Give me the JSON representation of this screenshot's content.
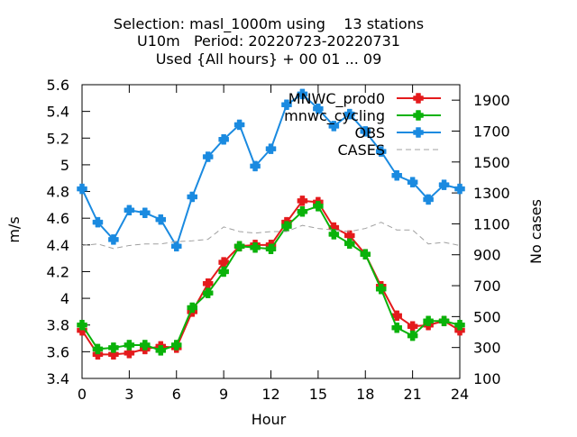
{
  "chart_data": {
    "type": "line",
    "title_lines": [
      "Selection: masl_1000m using    13 stations",
      "U10m   Period: 20220723-20220731",
      "Used {All hours} + 00 01 ... 09"
    ],
    "xlabel": "Hour",
    "ylabel": "m/s",
    "y2label": "No cases",
    "xlim": [
      0,
      24
    ],
    "ylim": [
      3.4,
      5.6
    ],
    "y2lim": [
      100,
      2000
    ],
    "x_ticks": [
      0,
      3,
      6,
      9,
      12,
      15,
      18,
      21,
      24
    ],
    "y_ticks": [
      "3.4",
      "3.6",
      "3.8",
      "4",
      "4.2",
      "4.4",
      "4.6",
      "4.8",
      "5",
      "5.2",
      "5.4",
      "5.6"
    ],
    "y2_ticks": [
      100,
      300,
      500,
      700,
      900,
      1100,
      1300,
      1500,
      1700,
      1900
    ],
    "legend_position": "top-right",
    "grid": false,
    "x": [
      0,
      1,
      2,
      3,
      4,
      5,
      6,
      7,
      8,
      9,
      10,
      11,
      12,
      13,
      14,
      15,
      16,
      17,
      18,
      19,
      20,
      21,
      22,
      23,
      24
    ],
    "series": [
      {
        "name": "MNWC_prod0",
        "color": "#e41a1c",
        "axis": "left",
        "style": "line-marker",
        "values": [
          3.76,
          3.58,
          3.58,
          3.59,
          3.62,
          3.64,
          3.63,
          3.9,
          4.11,
          4.27,
          4.39,
          4.4,
          4.4,
          4.57,
          4.73,
          4.72,
          4.53,
          4.47,
          4.33,
          4.09,
          3.87,
          3.79,
          3.8,
          3.83,
          3.76
        ]
      },
      {
        "name": "mnwc_cycling",
        "color": "#0ab20a",
        "axis": "left",
        "style": "line-marker",
        "values": [
          3.8,
          3.62,
          3.63,
          3.65,
          3.65,
          3.61,
          3.65,
          3.93,
          4.04,
          4.2,
          4.39,
          4.38,
          4.37,
          4.54,
          4.65,
          4.69,
          4.48,
          4.41,
          4.33,
          4.07,
          3.78,
          3.72,
          3.83,
          3.83,
          3.8
        ]
      },
      {
        "name": "OBS",
        "color": "#1a8ae0",
        "axis": "left",
        "style": "line-marker",
        "values": [
          4.82,
          4.57,
          4.44,
          4.66,
          4.64,
          4.59,
          4.39,
          4.76,
          5.06,
          5.19,
          5.3,
          4.99,
          5.12,
          5.45,
          5.53,
          5.42,
          5.29,
          5.38,
          5.25,
          5.1,
          4.92,
          4.87,
          4.74,
          4.85,
          4.82
        ]
      },
      {
        "name": "CASES",
        "color": "#a0a0a0",
        "axis": "right",
        "style": "dashed",
        "values": [
          960,
          970,
          940,
          960,
          970,
          970,
          985,
          990,
          1000,
          1080,
          1050,
          1040,
          1050,
          1050,
          1090,
          1070,
          1060,
          1050,
          1070,
          1110,
          1060,
          1060,
          970,
          980,
          960
        ]
      }
    ]
  }
}
